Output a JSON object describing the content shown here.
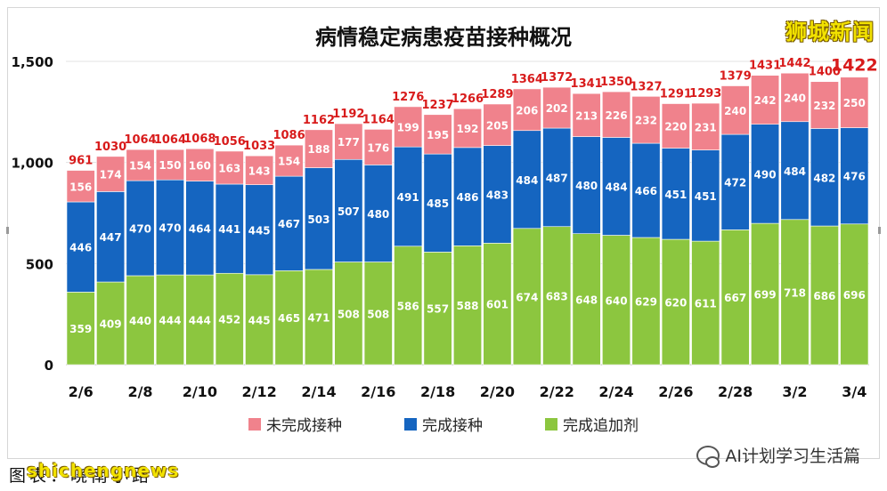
{
  "watermark": "狮城新闻",
  "credit": "图表：晓南小路",
  "credit_overlay": "shichengnews",
  "account": "AI计划学习生活篇",
  "colors": {
    "unvaccinated": "#f0828c",
    "vaccinated": "#1565c0",
    "boosted": "#8cc63f"
  },
  "chart_data": {
    "type": "bar",
    "stacked": true,
    "title": "病情稳定病患疫苗接种概况",
    "categories": [
      "2/6",
      "2/7",
      "2/8",
      "2/9",
      "2/10",
      "2/11",
      "2/12",
      "2/13",
      "2/14",
      "2/15",
      "2/16",
      "2/17",
      "2/18",
      "2/19",
      "2/20",
      "2/21",
      "2/22",
      "2/23",
      "2/24",
      "2/25",
      "2/26",
      "2/27",
      "2/28",
      "3/1",
      "3/2",
      "3/3",
      "3/4"
    ],
    "tick_labels": [
      "2/6",
      "",
      "2/8",
      "",
      "2/10",
      "",
      "2/12",
      "",
      "2/14",
      "",
      "2/16",
      "",
      "2/18",
      "",
      "2/20",
      "",
      "2/22",
      "",
      "2/24",
      "",
      "2/26",
      "",
      "2/28",
      "",
      "3/2",
      "",
      "3/4"
    ],
    "series": [
      {
        "name": "完成追加剂",
        "values": [
          359,
          409,
          440,
          444,
          444,
          452,
          445,
          465,
          471,
          508,
          508,
          586,
          557,
          588,
          601,
          674,
          683,
          648,
          640,
          629,
          620,
          611,
          667,
          699,
          718,
          686,
          696
        ]
      },
      {
        "name": "完成接种",
        "values": [
          446,
          447,
          470,
          470,
          464,
          441,
          445,
          467,
          503,
          507,
          480,
          491,
          485,
          486,
          483,
          484,
          487,
          480,
          484,
          466,
          451,
          451,
          472,
          490,
          484,
          482,
          476
        ]
      },
      {
        "name": "未完成接种",
        "values": [
          156,
          174,
          154,
          150,
          160,
          163,
          143,
          154,
          188,
          177,
          176,
          199,
          195,
          192,
          205,
          206,
          202,
          213,
          226,
          232,
          220,
          231,
          240,
          242,
          240,
          232,
          250
        ]
      }
    ],
    "totals": [
      961,
      1030,
      1064,
      1064,
      1068,
      1056,
      1033,
      1086,
      1162,
      1192,
      1164,
      1276,
      1237,
      1266,
      1289,
      1364,
      1372,
      1341,
      1350,
      1327,
      1291,
      1293,
      1379,
      1431,
      1442,
      1400,
      1422
    ],
    "legend_order": [
      "未完成接种",
      "完成接种",
      "完成追加剂"
    ],
    "legend_position": "bottom",
    "ylim": [
      0,
      1500
    ],
    "yticks": [
      0,
      500,
      1000,
      1500
    ],
    "ytick_labels": [
      "0",
      "500",
      "1,000",
      "1,500"
    ],
    "grid": true,
    "xlabel": "",
    "ylabel": ""
  }
}
